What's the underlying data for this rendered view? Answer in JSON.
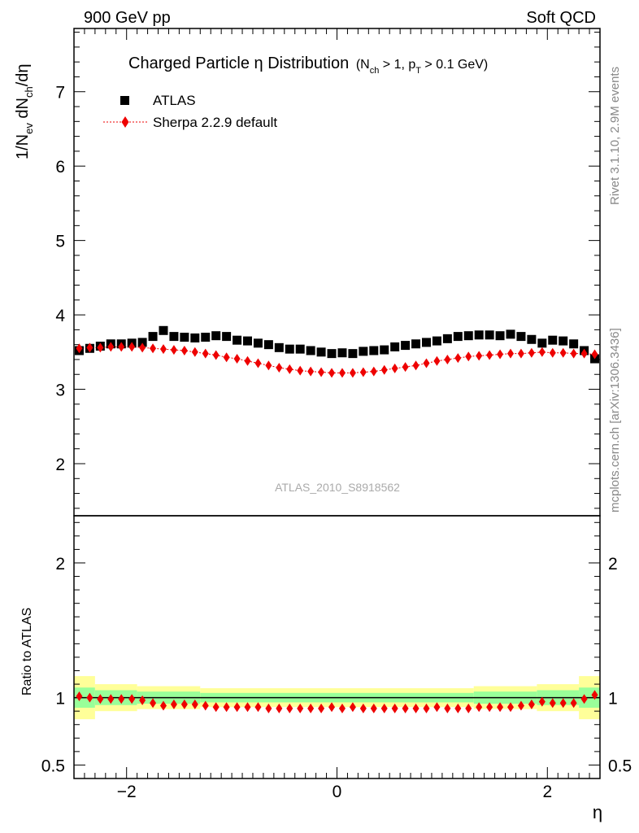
{
  "header": {
    "left": "900 GeV pp",
    "right": "Soft QCD"
  },
  "side": {
    "rivet": "Rivet 3.1.10,  2.9M events",
    "mcplots": "mcplots.cern.ch [arXiv:1306.3436]"
  },
  "watermark": "ATLAS_2010_S8918562",
  "colors": {
    "data": "#000000",
    "mc": "#ee0000",
    "band_inner": "#99ff99",
    "band_outer": "#ffff99"
  },
  "chart_data": [
    {
      "type": "scatter",
      "title": "Charged Particle η Distribution",
      "title_suffix": "(N_ch > 1, p_T > 0.1 GeV)",
      "xlabel": "η",
      "ylabel": "1/N_ev dN_ch/dη",
      "xlim": [
        -2.5,
        2.5
      ],
      "ylim": [
        1.3,
        7.85
      ],
      "yticks": [
        2,
        3,
        4,
        5,
        6,
        7
      ],
      "legend": {
        "position": "top-left",
        "data_label": "ATLAS",
        "mc_label": "Sherpa 2.2.9 default"
      },
      "x": [
        -2.45,
        -2.35,
        -2.25,
        -2.15,
        -2.05,
        -1.95,
        -1.85,
        -1.75,
        -1.65,
        -1.55,
        -1.45,
        -1.35,
        -1.25,
        -1.15,
        -1.05,
        -0.95,
        -0.85,
        -0.75,
        -0.65,
        -0.55,
        -0.45,
        -0.35,
        -0.25,
        -0.15,
        -0.05,
        0.05,
        0.15,
        0.25,
        0.35,
        0.45,
        0.55,
        0.65,
        0.75,
        0.85,
        0.95,
        1.05,
        1.15,
        1.25,
        1.35,
        1.45,
        1.55,
        1.65,
        1.75,
        1.85,
        1.95,
        2.05,
        2.15,
        2.25,
        2.35,
        2.45
      ],
      "series": [
        {
          "name": "ATLAS",
          "values": [
            3.52,
            3.55,
            3.58,
            3.61,
            3.61,
            3.62,
            3.63,
            3.71,
            3.79,
            3.71,
            3.7,
            3.69,
            3.7,
            3.72,
            3.71,
            3.66,
            3.65,
            3.62,
            3.6,
            3.56,
            3.54,
            3.54,
            3.52,
            3.5,
            3.48,
            3.49,
            3.48,
            3.51,
            3.52,
            3.53,
            3.57,
            3.59,
            3.61,
            3.63,
            3.65,
            3.68,
            3.71,
            3.72,
            3.73,
            3.73,
            3.72,
            3.74,
            3.71,
            3.67,
            3.62,
            3.66,
            3.65,
            3.61,
            3.52,
            3.41
          ]
        },
        {
          "name": "Sherpa 2.2.9 default",
          "values": [
            3.55,
            3.56,
            3.56,
            3.57,
            3.57,
            3.57,
            3.56,
            3.55,
            3.54,
            3.53,
            3.52,
            3.5,
            3.48,
            3.46,
            3.43,
            3.41,
            3.38,
            3.35,
            3.32,
            3.29,
            3.27,
            3.25,
            3.24,
            3.23,
            3.22,
            3.22,
            3.22,
            3.23,
            3.24,
            3.26,
            3.28,
            3.3,
            3.32,
            3.35,
            3.38,
            3.4,
            3.42,
            3.44,
            3.45,
            3.46,
            3.47,
            3.48,
            3.48,
            3.49,
            3.5,
            3.49,
            3.49,
            3.48,
            3.48,
            3.47
          ]
        }
      ]
    },
    {
      "type": "scatter",
      "ylabel": "Ratio to ATLAS",
      "xlabel": "η",
      "xlim": [
        -2.5,
        2.5
      ],
      "ylim": [
        0.4,
        2.35
      ],
      "yticks": [
        0.5,
        1,
        2
      ],
      "ytick_labels": [
        "0.5",
        "1",
        "2"
      ],
      "xticks": [
        -2,
        0,
        2
      ],
      "xtick_labels": [
        "−2",
        "0",
        "2"
      ],
      "ratio": [
        1.01,
        1.0,
        0.99,
        0.99,
        0.99,
        0.99,
        0.98,
        0.96,
        0.94,
        0.95,
        0.95,
        0.95,
        0.94,
        0.93,
        0.93,
        0.93,
        0.93,
        0.93,
        0.92,
        0.92,
        0.92,
        0.92,
        0.92,
        0.92,
        0.93,
        0.92,
        0.93,
        0.92,
        0.92,
        0.92,
        0.92,
        0.92,
        0.92,
        0.92,
        0.93,
        0.92,
        0.92,
        0.92,
        0.93,
        0.93,
        0.93,
        0.93,
        0.94,
        0.95,
        0.97,
        0.96,
        0.96,
        0.96,
        0.99,
        1.02
      ],
      "bands": [
        {
          "x0": -2.5,
          "x1": -2.3,
          "inner": 0.075,
          "outer": 0.16
        },
        {
          "x0": -2.3,
          "x1": -1.9,
          "inner": 0.055,
          "outer": 0.1
        },
        {
          "x0": -1.9,
          "x1": -1.3,
          "inner": 0.045,
          "outer": 0.085
        },
        {
          "x0": -1.3,
          "x1": 1.3,
          "inner": 0.035,
          "outer": 0.07
        },
        {
          "x0": 1.3,
          "x1": 1.9,
          "inner": 0.045,
          "outer": 0.085
        },
        {
          "x0": 1.9,
          "x1": 2.3,
          "inner": 0.055,
          "outer": 0.1
        },
        {
          "x0": 2.3,
          "x1": 2.5,
          "inner": 0.075,
          "outer": 0.16
        }
      ]
    }
  ]
}
